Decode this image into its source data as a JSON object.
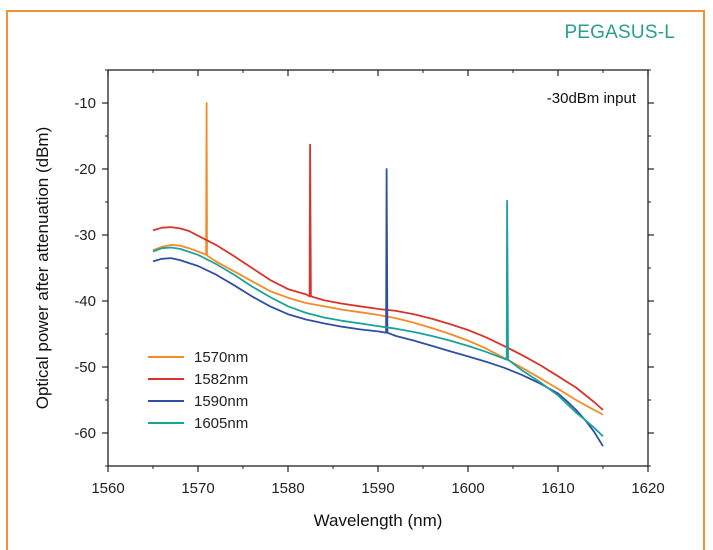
{
  "brand_label": "PEGASUS-L",
  "colors": {
    "frame": "#F0923A",
    "brand": "#2A9D8F"
  },
  "chart_data": {
    "type": "line",
    "title": "",
    "xlabel": "Wavelength (nm)",
    "ylabel": "Optical power after attenuation (dBm)",
    "xlim": [
      1560,
      1620
    ],
    "ylim": [
      -65,
      -5
    ],
    "xticks": [
      1560,
      1570,
      1580,
      1590,
      1600,
      1610,
      1620
    ],
    "yticks": [
      -60,
      -50,
      -40,
      -30,
      -20,
      -10
    ],
    "annotation": "-30dBm input",
    "grid": false,
    "legend_position": "bottom-left",
    "series": [
      {
        "name": "1570nm",
        "color": "#F28C28",
        "x": [
          1565,
          1566,
          1567,
          1568,
          1569,
          1570,
          1570.9,
          1570.95,
          1571.0,
          1571.1,
          1572,
          1574,
          1576,
          1578,
          1580,
          1582,
          1584,
          1586,
          1588,
          1590,
          1592,
          1594,
          1596,
          1598,
          1600,
          1602,
          1604,
          1606,
          1608,
          1610,
          1612,
          1614,
          1615
        ],
        "y": [
          -32.3,
          -31.8,
          -31.5,
          -31.6,
          -32.0,
          -32.5,
          -33.0,
          -10.0,
          -33.0,
          -33.2,
          -34.0,
          -35.5,
          -37.0,
          -38.5,
          -39.5,
          -40.3,
          -40.8,
          -41.3,
          -41.7,
          -42.1,
          -42.6,
          -43.3,
          -44.1,
          -45.0,
          -46.0,
          -47.2,
          -48.6,
          -50.1,
          -51.7,
          -53.3,
          -55.0,
          -56.5,
          -57.2
        ]
      },
      {
        "name": "1582nm",
        "color": "#D9342B",
        "x": [
          1565,
          1566,
          1567,
          1568,
          1569,
          1570,
          1572,
          1574,
          1576,
          1578,
          1580,
          1582,
          1582.4,
          1582.45,
          1582.55,
          1584,
          1586,
          1588,
          1590,
          1592,
          1594,
          1596,
          1598,
          1600,
          1602,
          1604,
          1606,
          1608,
          1610,
          1612,
          1614,
          1615
        ],
        "y": [
          -29.3,
          -28.9,
          -28.8,
          -29.0,
          -29.4,
          -30.1,
          -31.5,
          -33.2,
          -35.0,
          -36.8,
          -38.2,
          -39.0,
          -39.3,
          -16.3,
          -39.3,
          -39.9,
          -40.4,
          -40.8,
          -41.2,
          -41.5,
          -42.0,
          -42.7,
          -43.5,
          -44.4,
          -45.5,
          -46.8,
          -48.2,
          -49.7,
          -51.4,
          -53.1,
          -55.3,
          -56.5
        ]
      },
      {
        "name": "1590nm",
        "color": "#2F4FA2",
        "x": [
          1565,
          1566,
          1567,
          1568,
          1570,
          1572,
          1574,
          1576,
          1578,
          1580,
          1582,
          1584,
          1586,
          1588,
          1590,
          1590.9,
          1590.95,
          1591.05,
          1592,
          1594,
          1596,
          1598,
          1600,
          1602,
          1604,
          1606,
          1608,
          1610,
          1611,
          1612,
          1613,
          1614,
          1615
        ],
        "y": [
          -34.0,
          -33.6,
          -33.5,
          -33.8,
          -34.7,
          -36.0,
          -37.6,
          -39.3,
          -40.8,
          -42.0,
          -42.8,
          -43.4,
          -43.9,
          -44.3,
          -44.6,
          -44.8,
          -20.0,
          -44.8,
          -45.3,
          -46.0,
          -46.8,
          -47.6,
          -48.4,
          -49.2,
          -50.1,
          -51.2,
          -52.5,
          -54.0,
          -55.2,
          -56.5,
          -58.0,
          -59.8,
          -62.0
        ]
      },
      {
        "name": "1605nm",
        "color": "#1AA39A",
        "x": [
          1565,
          1566,
          1567,
          1568,
          1570,
          1572,
          1574,
          1576,
          1578,
          1580,
          1582,
          1584,
          1586,
          1588,
          1590,
          1592,
          1594,
          1596,
          1598,
          1600,
          1602,
          1604.3,
          1604.35,
          1604.45,
          1606,
          1608,
          1610,
          1611,
          1612,
          1613,
          1614,
          1615
        ],
        "y": [
          -32.5,
          -32.0,
          -31.9,
          -32.1,
          -33.0,
          -34.4,
          -36.0,
          -37.8,
          -39.4,
          -40.8,
          -41.8,
          -42.5,
          -43.0,
          -43.4,
          -43.8,
          -44.2,
          -44.7,
          -45.3,
          -46.0,
          -46.8,
          -47.7,
          -48.9,
          -24.8,
          -48.9,
          -50.5,
          -52.3,
          -54.3,
          -55.6,
          -56.9,
          -58.0,
          -59.2,
          -60.5
        ]
      }
    ]
  }
}
